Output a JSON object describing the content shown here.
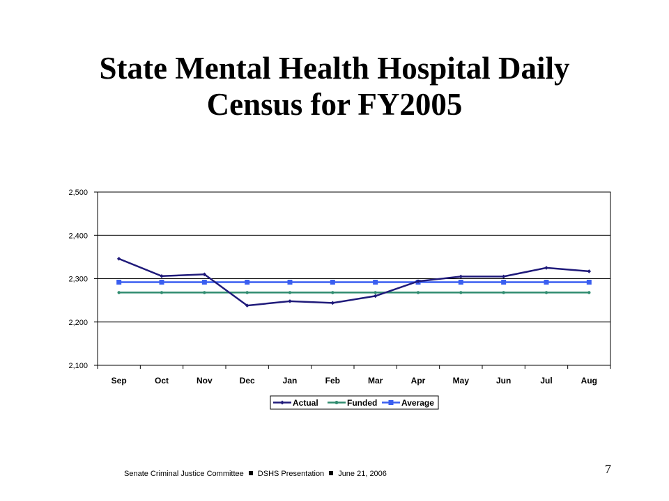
{
  "title_line1": "State Mental Health Hospital Daily",
  "title_line2": "Census for FY2005",
  "footer": {
    "part1": "Senate Criminal Justice Committee",
    "part2": "DSHS Presentation",
    "part3": "June 21, 2006"
  },
  "page_number": "7",
  "chart_data": {
    "type": "line",
    "categories": [
      "Sep",
      "Oct",
      "Nov",
      "Dec",
      "Jan",
      "Feb",
      "Mar",
      "Apr",
      "May",
      "Jun",
      "Jul",
      "Aug"
    ],
    "ylim": [
      2100,
      2500
    ],
    "yticks": [
      2100,
      2200,
      2300,
      2400,
      2500
    ],
    "ytick_labels": [
      "2,100",
      "2,200",
      "2,300",
      "2,400",
      "2,500"
    ],
    "grid": true,
    "legend_position": "bottom",
    "series": [
      {
        "name": "Actual",
        "color": "#1f1a7a",
        "marker": "diamond",
        "values": [
          2346,
          2306,
          2310,
          2238,
          2248,
          2244,
          2260,
          2294,
          2305,
          2305,
          2325,
          2317
        ]
      },
      {
        "name": "Funded",
        "color": "#2e8b6e",
        "marker": "circle",
        "values": [
          2268,
          2268,
          2268,
          2268,
          2268,
          2268,
          2268,
          2268,
          2268,
          2268,
          2268,
          2268
        ]
      },
      {
        "name": "Average",
        "color": "#3a5ef0",
        "marker": "square",
        "values": [
          2292,
          2292,
          2292,
          2292,
          2292,
          2292,
          2292,
          2292,
          2292,
          2292,
          2292,
          2292
        ]
      }
    ]
  }
}
